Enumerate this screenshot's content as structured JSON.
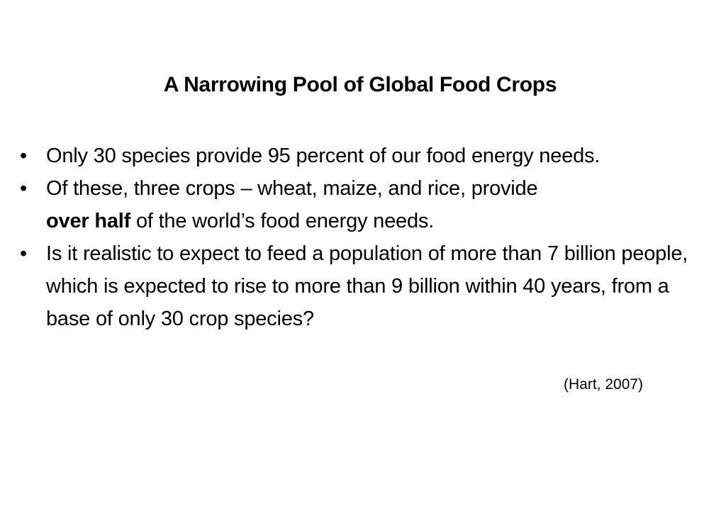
{
  "slide": {
    "title": "A Narrowing Pool of Global Food Crops",
    "bullet_symbol": "•",
    "bullets": [
      {
        "text": "Only 30 species provide 95 percent of our food energy needs."
      },
      {
        "text_before": "Of these, three crops – wheat, maize, and rice, provide",
        "emphasis": "over half",
        "text_after": "of the world’s food energy needs."
      },
      {
        "text": "Is it realistic to expect to feed a population of more than 7 billion people, which is expected to rise to more than 9 billion within 40 years, from a base of only 30 crop species?"
      }
    ],
    "citation": "(Hart, 2007)"
  }
}
